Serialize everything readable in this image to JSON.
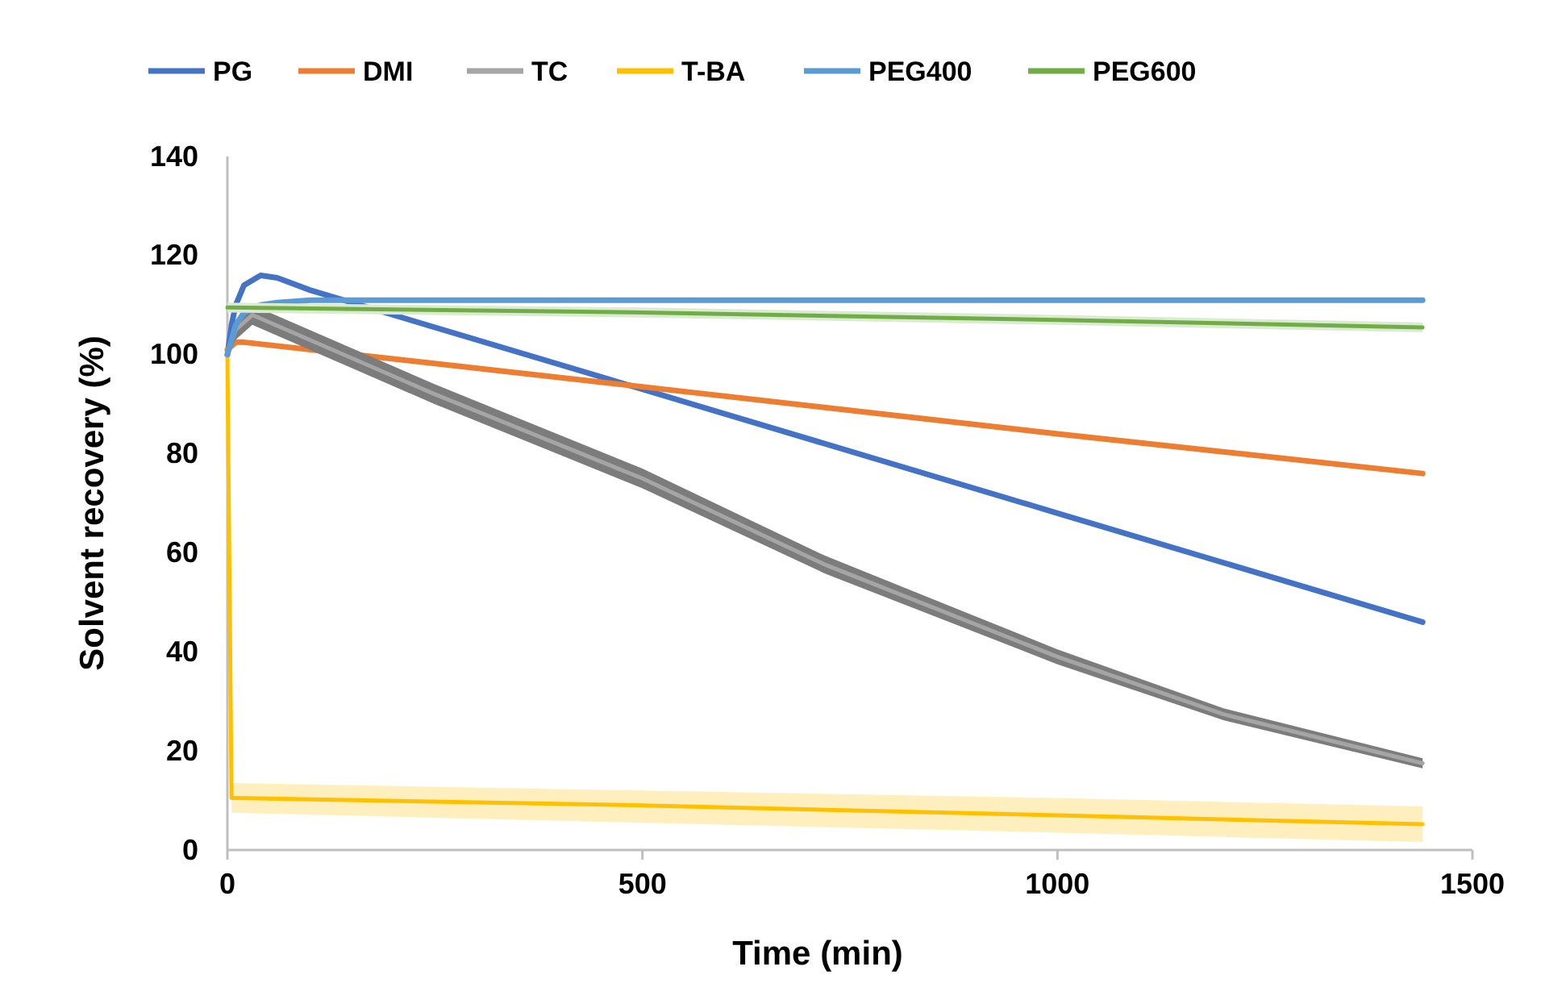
{
  "chart_data": {
    "type": "line",
    "xlabel": "Time (min)",
    "ylabel": "Solvent recovery (%)",
    "xlim": [
      0,
      1500
    ],
    "xticks": [
      0,
      500,
      1000,
      1500
    ],
    "ylim": [
      0,
      140
    ],
    "yticks": [
      0,
      20,
      40,
      60,
      80,
      100,
      120,
      140
    ],
    "grid": false,
    "legend": "top",
    "marker": "none",
    "line_style": "solid",
    "series": [
      {
        "name": "PG",
        "color": "#4472c4",
        "x": [
          0,
          5,
          10,
          20,
          40,
          60,
          100,
          500,
          1000,
          1440
        ],
        "values": [
          100,
          106,
          110,
          114,
          116,
          115.5,
          113,
          93,
          68,
          46
        ]
      },
      {
        "name": "DMI",
        "color": "#ed7d31",
        "x": [
          0,
          10,
          20,
          500,
          1000,
          1440
        ],
        "values": [
          101,
          102.5,
          102.5,
          93.5,
          84,
          76
        ]
      },
      {
        "name": "TC",
        "color": "#a5a5a5",
        "x": [
          0,
          10,
          30,
          250,
          500,
          720,
          1000,
          1200,
          1440
        ],
        "values": [
          100,
          105,
          108,
          92,
          75,
          57.6,
          39,
          27.4,
          17.5
        ],
        "lower": [
          99,
          103,
          106,
          90,
          73,
          55.8,
          37.5,
          26.2,
          16.5
        ],
        "upper": [
          101,
          107,
          110,
          94,
          77,
          59.4,
          40.5,
          28.6,
          18.5
        ]
      },
      {
        "name": "T-BA",
        "color": "#ffc000",
        "x": [
          0,
          5,
          10,
          500,
          1000,
          1440
        ],
        "values": [
          100,
          10.5,
          10.5,
          9,
          7,
          5.2
        ],
        "lower": [
          97,
          7.5,
          7.5,
          5.5,
          3.5,
          1.6
        ],
        "upper": [
          103,
          13.5,
          13.5,
          12,
          10.5,
          8.8
        ]
      },
      {
        "name": "PEG400",
        "color": "#5b9bd5",
        "x": [
          0,
          10,
          20,
          40,
          60,
          100,
          1440
        ],
        "values": [
          100,
          106,
          108.5,
          110,
          110.5,
          111,
          111
        ]
      },
      {
        "name": "PEG600",
        "color": "#70ad47",
        "x": [
          0,
          500,
          1000,
          1440
        ],
        "values": [
          109.5,
          108.5,
          107,
          105.5
        ],
        "lower": [
          108.5,
          107.5,
          106,
          104.5
        ],
        "upper": [
          110.5,
          109.5,
          108,
          106.5
        ]
      }
    ]
  }
}
